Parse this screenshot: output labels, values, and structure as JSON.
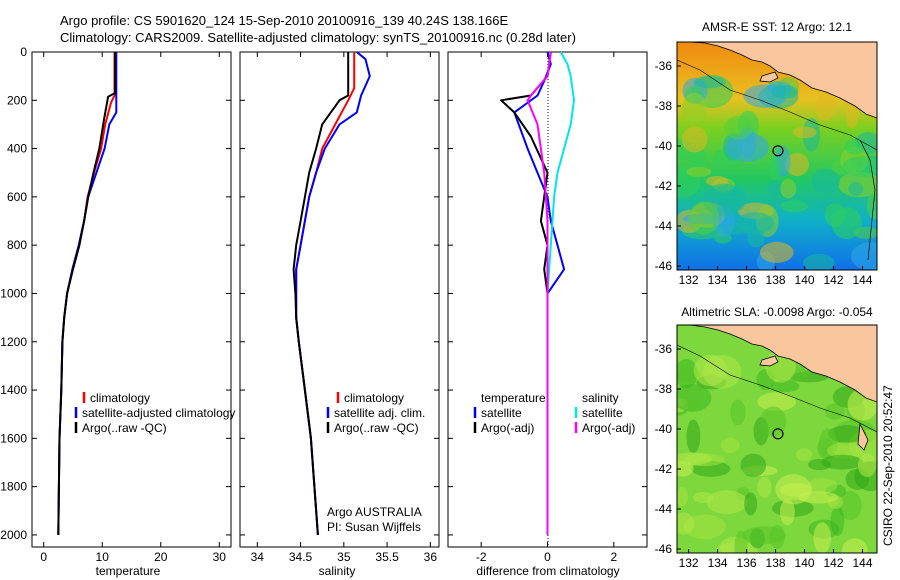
{
  "header": {
    "line1": "Argo profile: CS 5901620_124 15-Sep-2010 20100916_139 40.24S 138.166E",
    "line2": "Climatology: CARS2009. Satellite-adjusted climatology: synTS_20100916.nc (0.28d later)"
  },
  "colors": {
    "climatology": "#ff0000",
    "satellite": "#0000ff",
    "argo": "#000000",
    "satellite_salinity": "#00e5ee",
    "argo_salinity_adj": "#ff00ff",
    "land": "#f9c69d"
  },
  "chart_data": [
    {
      "type": "line",
      "id": "temperature",
      "xlabel": "temperature",
      "xlim": [
        -2,
        32
      ],
      "ylim": [
        0,
        2050
      ],
      "y_reversed": true,
      "xticks": [
        0,
        10,
        20,
        30
      ],
      "yticks": [
        0,
        200,
        400,
        600,
        800,
        1000,
        1200,
        1400,
        1600,
        1800,
        2000
      ],
      "legend": [
        "climatology",
        "satellite-adjusted climatology",
        "Argo(..raw -QC)"
      ],
      "series": [
        {
          "name": "climatology",
          "color": "#ff0000",
          "points": [
            [
              12.1,
              0
            ],
            [
              12.1,
              180
            ],
            [
              11.5,
              210
            ],
            [
              10.5,
              300
            ],
            [
              9.8,
              400
            ],
            [
              8.6,
              500
            ],
            [
              7.5,
              600
            ],
            [
              6.9,
              700
            ],
            [
              6.0,
              800
            ],
            [
              4.9,
              900
            ],
            [
              4.0,
              1000
            ],
            [
              3.5,
              1100
            ],
            [
              3.2,
              1200
            ],
            [
              3.0,
              1400
            ],
            [
              2.7,
              1600
            ],
            [
              2.6,
              1800
            ],
            [
              2.5,
              2000
            ]
          ]
        },
        {
          "name": "satellite-adjusted climatology",
          "color": "#0000ff",
          "points": [
            [
              12.4,
              0
            ],
            [
              12.4,
              250
            ],
            [
              11.2,
              300
            ],
            [
              10.4,
              400
            ],
            [
              9.0,
              500
            ],
            [
              7.6,
              600
            ],
            [
              6.9,
              700
            ],
            [
              6.0,
              800
            ],
            [
              4.9,
              900
            ],
            [
              4.0,
              1000
            ],
            [
              3.5,
              1100
            ],
            [
              3.2,
              1200
            ],
            [
              3.0,
              1400
            ],
            [
              2.7,
              1600
            ],
            [
              2.6,
              1800
            ],
            [
              2.5,
              2000
            ]
          ]
        },
        {
          "name": "Argo(..raw -QC)",
          "color": "#000000",
          "points": [
            [
              12.2,
              0
            ],
            [
              12.2,
              170
            ],
            [
              11.0,
              185
            ],
            [
              10.3,
              280
            ],
            [
              9.5,
              400
            ],
            [
              8.5,
              500
            ],
            [
              7.6,
              600
            ],
            [
              6.9,
              700
            ],
            [
              6.1,
              800
            ],
            [
              5.0,
              900
            ],
            [
              4.0,
              1000
            ],
            [
              3.5,
              1100
            ],
            [
              3.2,
              1200
            ],
            [
              3.0,
              1400
            ],
            [
              2.7,
              1600
            ],
            [
              2.6,
              1800
            ],
            [
              2.5,
              2000
            ]
          ]
        }
      ]
    },
    {
      "type": "line",
      "id": "salinity",
      "xlabel": "salinity",
      "xlim": [
        33.8,
        36.1
      ],
      "ylim": [
        0,
        2050
      ],
      "y_reversed": true,
      "xticks": [
        34,
        34.5,
        35,
        35.5,
        36
      ],
      "legend": [
        "climatology",
        "satellite adj. clim.",
        "Argo(..raw -QC)"
      ],
      "annotation": [
        "Argo AUSTRALIA",
        "PI: Susan Wijffels"
      ],
      "series": [
        {
          "name": "climatology",
          "color": "#ff0000",
          "points": [
            [
              35.12,
              0
            ],
            [
              35.12,
              150
            ],
            [
              35.05,
              200
            ],
            [
              34.9,
              300
            ],
            [
              34.75,
              400
            ],
            [
              34.68,
              500
            ],
            [
              34.6,
              600
            ],
            [
              34.55,
              700
            ],
            [
              34.5,
              800
            ],
            [
              34.45,
              900
            ],
            [
              34.45,
              1000
            ],
            [
              34.45,
              1100
            ],
            [
              34.48,
              1200
            ],
            [
              34.55,
              1400
            ],
            [
              34.62,
              1600
            ],
            [
              34.66,
              1800
            ],
            [
              34.7,
              2000
            ]
          ]
        },
        {
          "name": "satellite adj. clim.",
          "color": "#0000ff",
          "points": [
            [
              35.15,
              0
            ],
            [
              35.25,
              30
            ],
            [
              35.3,
              100
            ],
            [
              35.2,
              180
            ],
            [
              35.15,
              250
            ],
            [
              34.95,
              300
            ],
            [
              34.78,
              400
            ],
            [
              34.68,
              500
            ],
            [
              34.6,
              600
            ],
            [
              34.55,
              700
            ],
            [
              34.5,
              800
            ],
            [
              34.45,
              900
            ],
            [
              34.45,
              1000
            ],
            [
              34.45,
              1100
            ],
            [
              34.48,
              1200
            ],
            [
              34.55,
              1400
            ],
            [
              34.62,
              1600
            ],
            [
              34.66,
              1800
            ],
            [
              34.7,
              2000
            ]
          ]
        },
        {
          "name": "Argo(..raw -QC)",
          "color": "#000000",
          "points": [
            [
              35.05,
              0
            ],
            [
              35.05,
              180
            ],
            [
              34.95,
              200
            ],
            [
              34.75,
              300
            ],
            [
              34.68,
              400
            ],
            [
              34.6,
              500
            ],
            [
              34.55,
              600
            ],
            [
              34.5,
              700
            ],
            [
              34.45,
              800
            ],
            [
              34.42,
              900
            ],
            [
              34.44,
              1000
            ],
            [
              34.45,
              1100
            ],
            [
              34.48,
              1200
            ],
            [
              34.55,
              1400
            ],
            [
              34.62,
              1600
            ],
            [
              34.66,
              1800
            ],
            [
              34.7,
              2000
            ]
          ]
        }
      ]
    },
    {
      "type": "line",
      "id": "difference",
      "xlabel": "difference from climatology",
      "xlim": [
        -3,
        3
      ],
      "ylim": [
        0,
        2050
      ],
      "y_reversed": true,
      "xticks": [
        -2,
        0,
        2
      ],
      "legend_groups": [
        {
          "heading": "temperature",
          "entries": [
            "satellite",
            "Argo(-adj)"
          ]
        },
        {
          "heading": "salinity",
          "entries": [
            "satellite",
            "Argo(-adj)"
          ]
        }
      ],
      "series": [
        {
          "name": "temperature satellite",
          "color": "#0000ff",
          "points": [
            [
              0,
              0
            ],
            [
              0.1,
              50
            ],
            [
              -0.1,
              120
            ],
            [
              -0.3,
              180
            ],
            [
              -1.0,
              250
            ],
            [
              -0.6,
              400
            ],
            [
              -0.3,
              500
            ],
            [
              0.0,
              600
            ],
            [
              0.1,
              700
            ],
            [
              0.3,
              800
            ],
            [
              0.5,
              900
            ],
            [
              0.0,
              1000
            ],
            [
              0.0,
              1200
            ],
            [
              0.0,
              2000
            ]
          ]
        },
        {
          "name": "temperature Argo(-adj)",
          "color": "#000000",
          "points": [
            [
              0.1,
              0
            ],
            [
              0.0,
              100
            ],
            [
              -0.5,
              180
            ],
            [
              -1.4,
              200
            ],
            [
              -1.0,
              250
            ],
            [
              -0.5,
              350
            ],
            [
              0.0,
              500
            ],
            [
              -0.2,
              700
            ],
            [
              0.0,
              800
            ],
            [
              -0.1,
              900
            ],
            [
              0.0,
              1000
            ],
            [
              0.0,
              2000
            ]
          ]
        },
        {
          "name": "salinity satellite",
          "color": "#00e5ee",
          "points": [
            [
              0.4,
              0
            ],
            [
              0.6,
              50
            ],
            [
              0.7,
              100
            ],
            [
              0.8,
              200
            ],
            [
              0.7,
              300
            ],
            [
              0.5,
              400
            ],
            [
              0.3,
              500
            ],
            [
              0.2,
              600
            ],
            [
              0.1,
              800
            ],
            [
              0.0,
              1000
            ],
            [
              0.0,
              2000
            ]
          ]
        },
        {
          "name": "salinity Argo(-adj)",
          "color": "#ff00ff",
          "points": [
            [
              0.1,
              0
            ],
            [
              0.0,
              100
            ],
            [
              -0.5,
              180
            ],
            [
              -0.6,
              200
            ],
            [
              -0.3,
              300
            ],
            [
              -0.1,
              500
            ],
            [
              0.0,
              700
            ],
            [
              0.0,
              2000
            ]
          ]
        }
      ]
    },
    {
      "type": "heatmap",
      "id": "sst_map",
      "title": "AMSR-E SST: 12 Argo: 12.1",
      "xlim": [
        131.2,
        145
      ],
      "ylim": [
        -46.2,
        -34.8
      ],
      "xticks": [
        132,
        134,
        136,
        138,
        140,
        142,
        144
      ],
      "yticks": [
        -36,
        -38,
        -40,
        -42,
        -44,
        -46
      ],
      "marker": [
        138.166,
        -40.24
      ]
    },
    {
      "type": "heatmap",
      "id": "sla_map",
      "title": "Altimetric SLA: -0.0098 Argo: -0.054",
      "xlim": [
        131.2,
        145
      ],
      "ylim": [
        -46.2,
        -34.8
      ],
      "xticks": [
        132,
        134,
        136,
        138,
        140,
        142,
        144
      ],
      "yticks": [
        -36,
        -38,
        -40,
        -42,
        -44,
        -46
      ],
      "marker": [
        138.166,
        -40.24
      ]
    }
  ],
  "footer": {
    "side_label": "CSIRO 22-Sep-2010 20:52:47"
  }
}
